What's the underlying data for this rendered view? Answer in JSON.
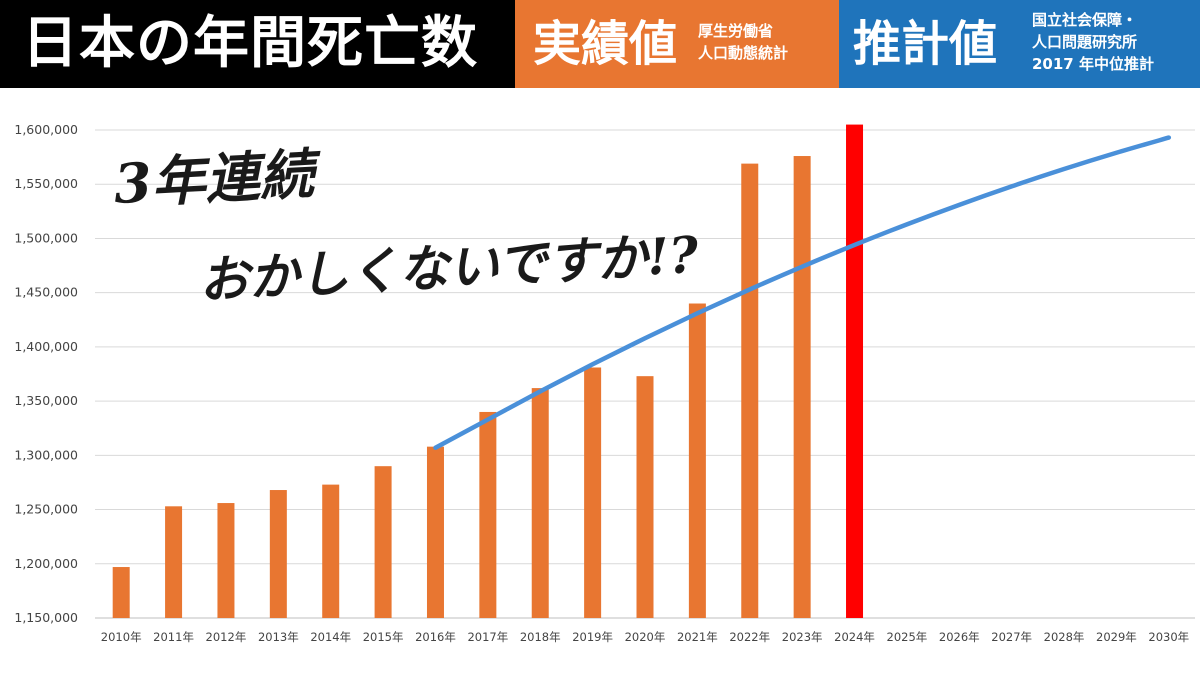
{
  "header": {
    "title": "日本の年間死亡数",
    "actual_label": "実績値",
    "actual_source_lines": [
      "厚生労働省",
      "人口動態統計"
    ],
    "projection_label": "推計値",
    "projection_source_lines": [
      "国立社会保障・",
      "人口問題研究所",
      "2017 年中位推計"
    ],
    "colors": {
      "black": "#000000",
      "orange": "#e87631",
      "blue": "#1f74bb"
    }
  },
  "annotation": {
    "line1": "3年連続",
    "line2": "おかしくないですか!?"
  },
  "chart_data": {
    "type": "bar",
    "categories": [
      "2010年",
      "2011年",
      "2012年",
      "2013年",
      "2014年",
      "2015年",
      "2016年",
      "2017年",
      "2018年",
      "2019年",
      "2020年",
      "2021年",
      "2022年",
      "2023年",
      "2024年",
      "2025年",
      "2026年",
      "2027年",
      "2028年",
      "2029年",
      "2030年"
    ],
    "ylim": [
      1150000,
      1600000
    ],
    "yticks": [
      1150000,
      1200000,
      1250000,
      1300000,
      1350000,
      1400000,
      1450000,
      1500000,
      1550000,
      1600000
    ],
    "grid": true,
    "series": [
      {
        "type": "bar",
        "color": "#e87631",
        "highlight_color": "#ff0000",
        "highlight_category": "2024年",
        "values": [
          1197000,
          1253000,
          1256000,
          1268000,
          1273000,
          1290000,
          1308000,
          1340000,
          1362000,
          1381000,
          1373000,
          1440000,
          1569000,
          1576000,
          1605000,
          null,
          null,
          null,
          null,
          null,
          null
        ]
      },
      {
        "type": "line",
        "color": "#4a90d9",
        "values": [
          null,
          null,
          null,
          null,
          null,
          null,
          1307000,
          1333000,
          1359000,
          1384000,
          1408000,
          1431000,
          1453000,
          1474000,
          1494000,
          1513000,
          1531000,
          1548000,
          1564000,
          1579000,
          1593000
        ]
      }
    ]
  }
}
